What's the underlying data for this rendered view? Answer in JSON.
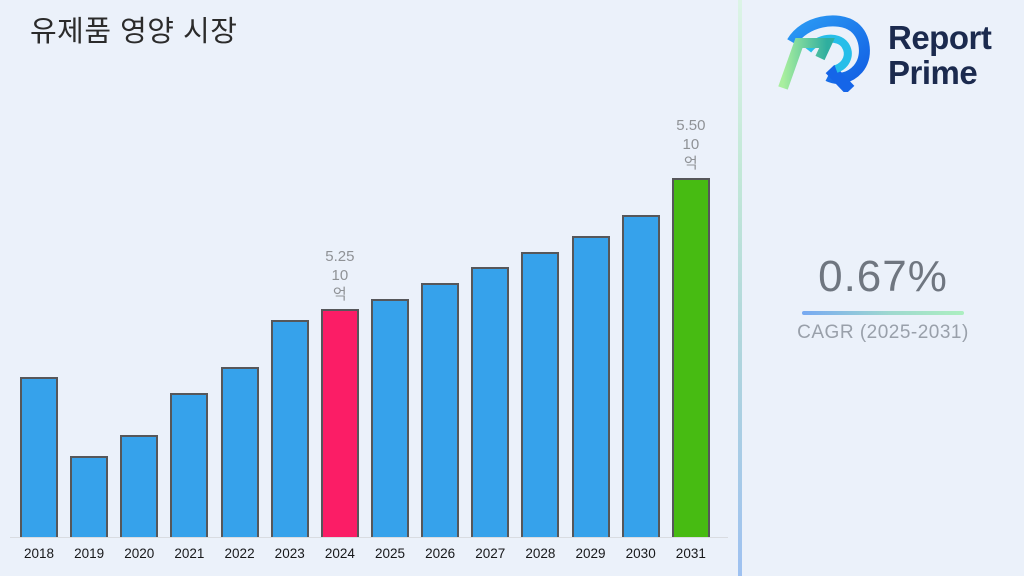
{
  "page": {
    "background": "#EBF1FA"
  },
  "header": {
    "title": "유제품 영양 시장"
  },
  "logo": {
    "name": "Report Prime",
    "line1": "Report",
    "line2": "Prime",
    "text_color": "#1B2A4E"
  },
  "cagr": {
    "value": "0.67%",
    "label": "CAGR (2025-2031)"
  },
  "chart_data": {
    "type": "bar",
    "title": "유제품 영양 시장",
    "categories": [
      "2018",
      "2019",
      "2020",
      "2021",
      "2022",
      "2023",
      "2024",
      "2025",
      "2026",
      "2027",
      "2028",
      "2029",
      "2030",
      "2031"
    ],
    "values": [
      5.12,
      4.97,
      5.01,
      5.09,
      5.14,
      5.23,
      5.25,
      5.27,
      5.3,
      5.33,
      5.36,
      5.39,
      5.43,
      5.5
    ],
    "unit": "10억",
    "ylim": [
      4.815,
      5.6
    ],
    "grid": false,
    "legend": false,
    "bar_color_default": "#36A2EB",
    "bar_border_color": "#56575A",
    "highlights": {
      "2024": "#FB1D66",
      "2031": "#47BB12"
    },
    "data_labels": [
      {
        "category": "2024",
        "line1": "5.25",
        "line2": "10억"
      },
      {
        "category": "2031",
        "line1": "5.50",
        "line2": "10억"
      }
    ]
  }
}
